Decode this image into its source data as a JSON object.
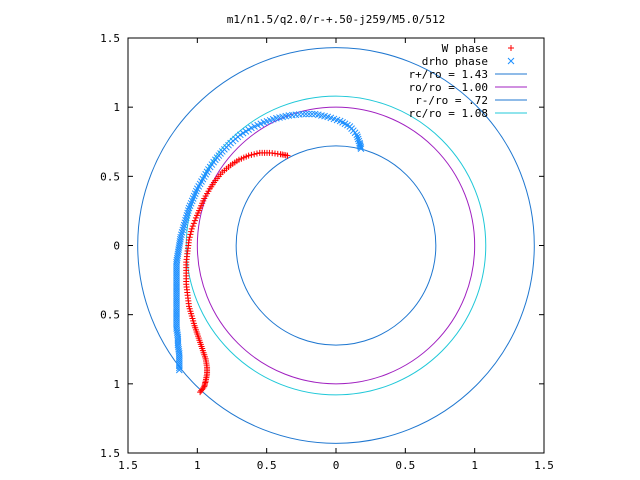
{
  "chart_data": {
    "type": "scatter",
    "title": "m1/n1.5/q2.0/r-+.50-j259/M5.0/512",
    "xlabel": "",
    "ylabel": "",
    "xlim": [
      -1.5,
      1.5
    ],
    "ylim": [
      -1.5,
      1.5
    ],
    "x_ticks": [
      -1.5,
      -1,
      -0.5,
      0,
      0.5,
      1,
      1.5
    ],
    "y_ticks": [
      -1.5,
      -1,
      -0.5,
      0,
      0.5,
      1,
      1.5
    ],
    "x_tick_labels": [
      "1.5",
      "1",
      "0.5",
      "0",
      "0.5",
      "1",
      "1.5"
    ],
    "y_tick_labels": [
      "1.5",
      "1",
      "0.5",
      "0",
      "0.5",
      "1",
      "1.5"
    ],
    "grid": false,
    "legend_position": "top-right",
    "series": [
      {
        "name": "W phase",
        "kind": "points",
        "marker": "plus",
        "color": "#ff0000",
        "points": [
          [
            -0.98,
            -1.06
          ],
          [
            -0.95,
            -1.02
          ],
          [
            -0.94,
            -0.98
          ],
          [
            -0.93,
            -0.93
          ],
          [
            -0.93,
            -0.88
          ],
          [
            -0.94,
            -0.82
          ],
          [
            -0.96,
            -0.76
          ],
          [
            -0.98,
            -0.7
          ],
          [
            -1.0,
            -0.64
          ],
          [
            -1.02,
            -0.58
          ],
          [
            -1.04,
            -0.51
          ],
          [
            -1.06,
            -0.44
          ],
          [
            -1.07,
            -0.36
          ],
          [
            -1.08,
            -0.28
          ],
          [
            -1.08,
            -0.2
          ],
          [
            -1.08,
            -0.12
          ],
          [
            -1.07,
            -0.04
          ],
          [
            -1.06,
            0.04
          ],
          [
            -1.04,
            0.12
          ],
          [
            -1.01,
            0.2
          ],
          [
            -0.98,
            0.27
          ],
          [
            -0.95,
            0.34
          ],
          [
            -0.91,
            0.41
          ],
          [
            -0.87,
            0.47
          ],
          [
            -0.82,
            0.53
          ],
          [
            -0.76,
            0.58
          ],
          [
            -0.7,
            0.62
          ],
          [
            -0.63,
            0.65
          ],
          [
            -0.55,
            0.67
          ],
          [
            -0.48,
            0.67
          ],
          [
            -0.4,
            0.66
          ],
          [
            -0.35,
            0.65
          ]
        ]
      },
      {
        "name": "drho phase",
        "kind": "points",
        "marker": "cross",
        "color": "#1e90ff",
        "points": [
          [
            -1.13,
            -0.9
          ],
          [
            -1.13,
            -0.84
          ],
          [
            -1.13,
            -0.78
          ],
          [
            -1.14,
            -0.72
          ],
          [
            -1.14,
            -0.66
          ],
          [
            -1.15,
            -0.6
          ],
          [
            -1.15,
            -0.54
          ],
          [
            -1.15,
            -0.48
          ],
          [
            -1.15,
            -0.42
          ],
          [
            -1.15,
            -0.36
          ],
          [
            -1.15,
            -0.3
          ],
          [
            -1.15,
            -0.24
          ],
          [
            -1.15,
            -0.18
          ],
          [
            -1.15,
            -0.12
          ],
          [
            -1.14,
            -0.06
          ],
          [
            -1.13,
            0.0
          ],
          [
            -1.12,
            0.06
          ],
          [
            -1.1,
            0.13
          ],
          [
            -1.08,
            0.2
          ],
          [
            -1.06,
            0.27
          ],
          [
            -1.03,
            0.34
          ],
          [
            -1.0,
            0.41
          ],
          [
            -0.96,
            0.48
          ],
          [
            -0.92,
            0.55
          ],
          [
            -0.87,
            0.62
          ],
          [
            -0.82,
            0.68
          ],
          [
            -0.76,
            0.74
          ],
          [
            -0.69,
            0.8
          ],
          [
            -0.61,
            0.85
          ],
          [
            -0.52,
            0.89
          ],
          [
            -0.43,
            0.92
          ],
          [
            -0.34,
            0.94
          ],
          [
            -0.24,
            0.95
          ],
          [
            -0.15,
            0.95
          ],
          [
            -0.06,
            0.93
          ],
          [
            0.03,
            0.9
          ],
          [
            0.1,
            0.86
          ],
          [
            0.15,
            0.8
          ],
          [
            0.17,
            0.74
          ],
          [
            0.18,
            0.7
          ]
        ]
      },
      {
        "name": "r+/ro = 1.43",
        "kind": "circle",
        "radius": 1.43,
        "color": "#1f77d0"
      },
      {
        "name": "ro/ro = 1.00",
        "kind": "circle",
        "radius": 1.0,
        "color": "#a020c0"
      },
      {
        "name": "r-/ro = .72",
        "kind": "circle",
        "radius": 0.72,
        "color": "#1f77d0"
      },
      {
        "name": "rc/ro = 1.08",
        "kind": "circle",
        "radius": 1.08,
        "color": "#20c8d8"
      }
    ]
  }
}
